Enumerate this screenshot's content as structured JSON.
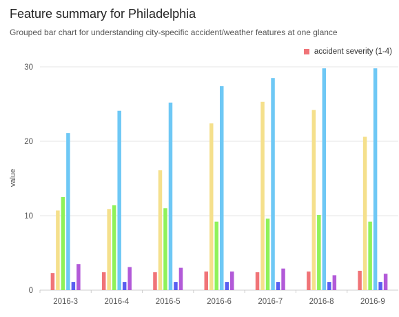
{
  "chart_data": {
    "type": "bar",
    "title": "Feature summary for Philadelphia",
    "subtitle": "Grouped bar chart for understanding city-specific accident/weather features at one glance",
    "xlabel": "",
    "ylabel": "value",
    "ylim": [
      0,
      30
    ],
    "yticks": [
      0,
      10,
      20,
      30
    ],
    "grid": true,
    "legend_placement": "top-right",
    "categories": [
      "2016-3",
      "2016-4",
      "2016-5",
      "2016-6",
      "2016-7",
      "2016-8",
      "2016-9"
    ],
    "series": [
      {
        "name": "accident severity (1-4)",
        "color": "#f07478",
        "values": [
          2.3,
          2.4,
          2.4,
          2.5,
          2.4,
          2.5,
          2.6
        ]
      },
      {
        "color": "#f5e08c",
        "values": [
          10.7,
          10.9,
          16.1,
          22.4,
          25.3,
          24.2,
          20.6
        ]
      },
      {
        "color": "#8ff25a",
        "values": [
          12.5,
          11.4,
          11.0,
          9.2,
          9.6,
          10.1,
          9.2
        ]
      },
      {
        "color": "#6ec8f5",
        "values": [
          21.1,
          24.1,
          25.2,
          27.4,
          28.5,
          29.8,
          29.8
        ]
      },
      {
        "color": "#5a5ef0",
        "values": [
          1.1,
          1.1,
          1.1,
          1.1,
          1.1,
          1.1,
          1.1
        ]
      },
      {
        "color": "#b25ad8",
        "values": [
          3.5,
          3.1,
          3.0,
          2.5,
          2.9,
          2.0,
          2.2
        ]
      }
    ]
  }
}
